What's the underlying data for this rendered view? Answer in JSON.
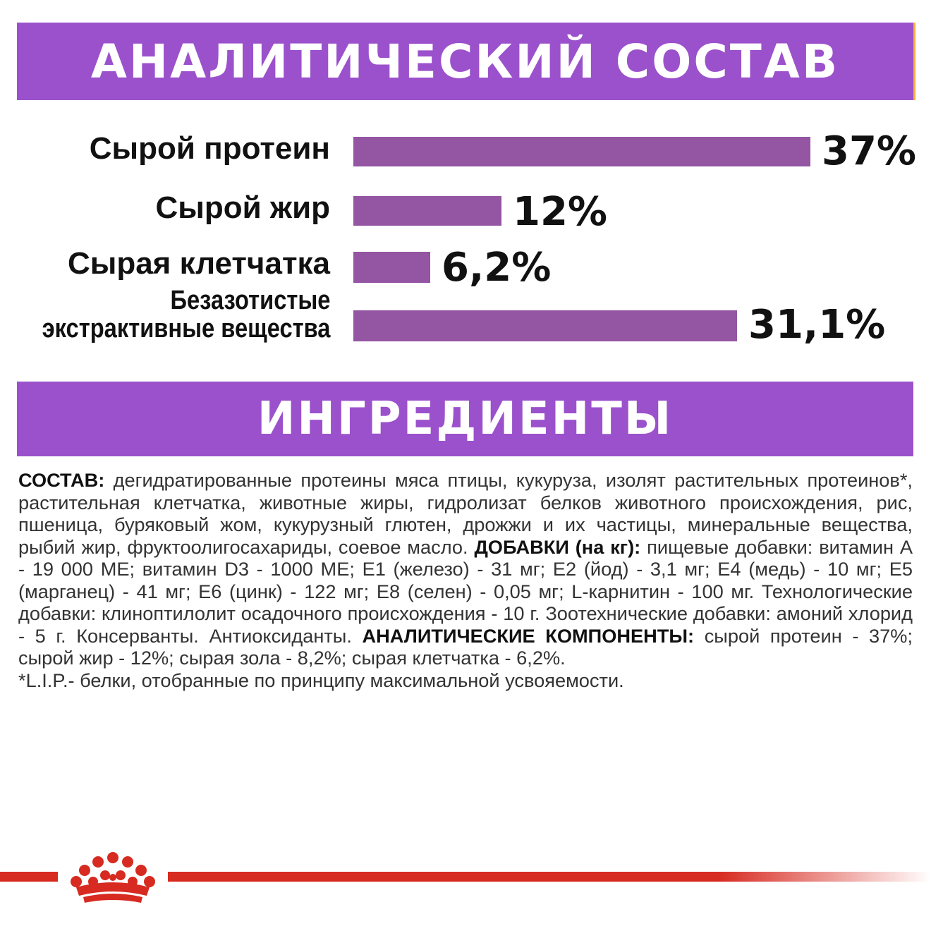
{
  "colors": {
    "banner": "#9b51cc",
    "bar": "#9455a3",
    "brand_red": "#d72a20"
  },
  "analysis": {
    "title": "АНАЛИТИЧЕСКИЙ СОСТАВ",
    "nutrients": [
      {
        "label": "Сырой протеин",
        "label_line2": "",
        "value_text": "37%",
        "value": 37
      },
      {
        "label": "Сырой жир",
        "label_line2": "",
        "value_text": "12%",
        "value": 12
      },
      {
        "label": "Сырая клетчатка",
        "label_line2": "",
        "value_text": "6,2%",
        "value": 6.2
      },
      {
        "label": "Безазотистые",
        "label_line2": "экстрактивные вещества",
        "value_text": "31,1%",
        "value": 31.1
      }
    ]
  },
  "ingredients": {
    "title": "ИНГРЕДИЕНТЫ",
    "composition_label": "СОСТАВ:",
    "composition_text": " дегидратированные протеины мяса птицы, кукуруза, изолят растительных протеинов*, растительная клетчатка, животные жиры, гидролизат белков животного происхождения, рис, пшеница, буряковый жом, кукурузный глютен, дрожжи и их частицы, минеральные вещества, рыбий жир, фруктоолигосахариды, соевое масло. ",
    "additives_label": "ДОБАВКИ (на кг):",
    "additives_text": " пищевые добавки: витамин А - 19 000 МЕ; витамин D3 - 1000 МЕ; Е1 (железо) - 31 мг; Е2 (йод) - 3,1 мг; Е4 (медь) - 10 мг; Е5 (марганец) - 41 мг; Е6 (цинк) - 122 мг; Е8 (селен) - 0,05 мг; L-карнитин - 100 мг. Технологические добавки: клиноптилолит осадочного происхождения - 10 г. Зоотехнические добавки: амоний хлорид - 5 г. Консерванты. Антиоксиданты. ",
    "analytical_label": "АНАЛИТИЧЕСКИЕ КОМПОНЕНТЫ:",
    "analytical_text": " сырой протеин - 37%; сырой жир - 12%; сырая зола - 8,2%; сырая клетчатка - 6,2%.",
    "footnote": "*L.I.P.- белки, отобранные по принципу максимальной усвояемости."
  },
  "footer": {
    "logo_icon": "royal-canin-crown-icon"
  }
}
